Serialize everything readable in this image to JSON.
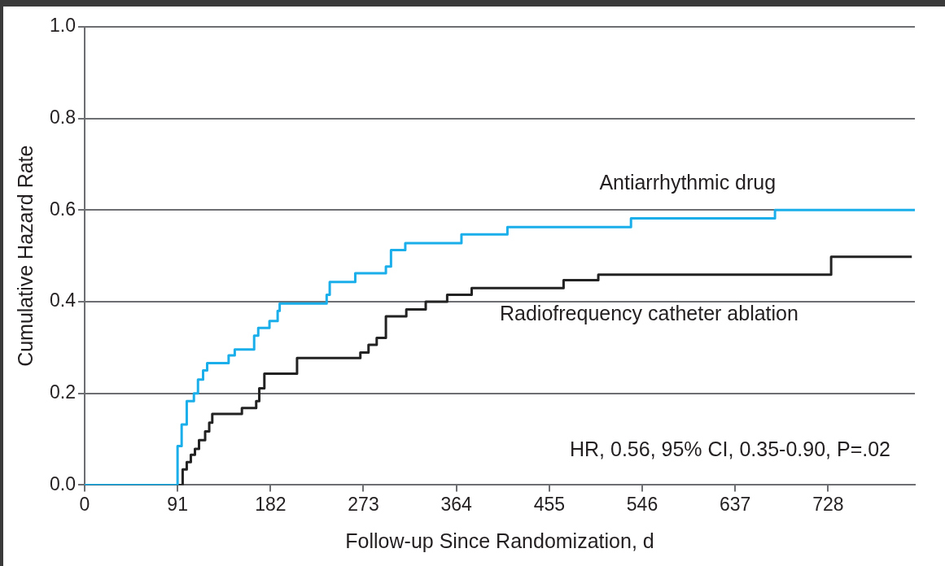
{
  "chart_data": {
    "type": "step",
    "xlabel": "Follow-up Since Randomization, d",
    "ylabel": "Cumulative Hazard Rate",
    "xlim": [
      0,
      813
    ],
    "xticks": [
      0,
      91,
      182,
      273,
      364,
      455,
      546,
      637,
      728
    ],
    "ylim": [
      0,
      1
    ],
    "yticks": [
      {
        "value": 0,
        "label": "0.0"
      },
      {
        "value": 0.2,
        "label": "0.2"
      },
      {
        "value": 0.4,
        "label": "0.4"
      },
      {
        "value": 0.6,
        "label": "0.6"
      },
      {
        "value": 0.8,
        "label": "0.8"
      },
      {
        "value": 1,
        "label": "1.0"
      }
    ],
    "grid": "y",
    "legend": false,
    "series": [
      {
        "name": "Antiarrhythmic drug",
        "color": "#1aaeea",
        "x": [
          0,
          90,
          91,
          95,
          100,
          107,
          111,
          116,
          120,
          141,
          147,
          166,
          170,
          181,
          189,
          191,
          237,
          240,
          265,
          295,
          300,
          314,
          369,
          414,
          535,
          676,
          813
        ],
        "values": [
          0,
          0,
          0.085,
          0.132,
          0.183,
          0.2,
          0.23,
          0.25,
          0.266,
          0.283,
          0.296,
          0.326,
          0.343,
          0.358,
          0.38,
          0.396,
          0.415,
          0.443,
          0.462,
          0.477,
          0.513,
          0.528,
          0.547,
          0.563,
          0.582,
          0.6,
          0.6
        ]
      },
      {
        "name": "Radiofrequency catheter ablation",
        "color": "#222222",
        "x": [
          0,
          93,
          96,
          100,
          104,
          108,
          112,
          118,
          122,
          125,
          154,
          168,
          171,
          176,
          208,
          270,
          278,
          286,
          295,
          315,
          334,
          355,
          379,
          469,
          503,
          731,
          810
        ],
        "values": [
          0,
          0,
          0.034,
          0.05,
          0.066,
          0.079,
          0.098,
          0.117,
          0.136,
          0.155,
          0.168,
          0.183,
          0.211,
          0.243,
          0.277,
          0.289,
          0.306,
          0.321,
          0.368,
          0.383,
          0.4,
          0.415,
          0.43,
          0.447,
          0.459,
          0.498,
          0.498
        ]
      }
    ],
    "annotations": [
      "HR, 0.56, 95% CI, 0.35-0.90, P=.02"
    ]
  }
}
